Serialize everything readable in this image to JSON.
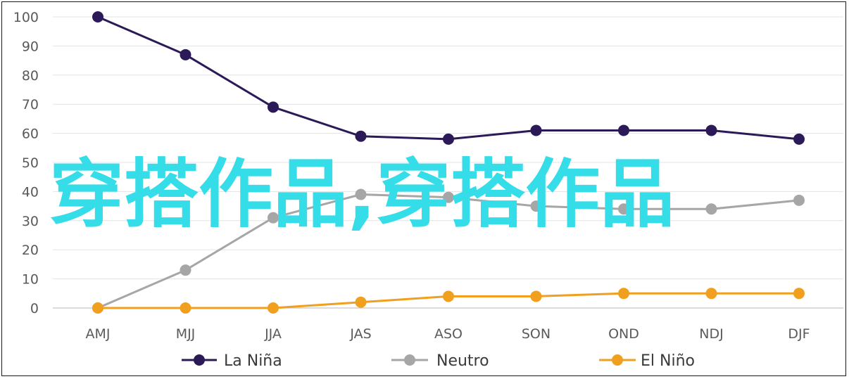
{
  "chart_data": {
    "type": "line",
    "categories": [
      "AMJ",
      "MJJ",
      "JJA",
      "JAS",
      "ASO",
      "SON",
      "OND",
      "NDJ",
      "DJF"
    ],
    "ylim": [
      0,
      100
    ],
    "yticks": [
      0,
      10,
      20,
      30,
      40,
      50,
      60,
      70,
      80,
      90,
      100
    ],
    "grid": true,
    "legend_position": "bottom",
    "series": [
      {
        "name": "La Niña",
        "color": "#2b1a57",
        "values": [
          100,
          87,
          69,
          59,
          58,
          61,
          61,
          61,
          58
        ]
      },
      {
        "name": "Neutro",
        "color": "#a6a6a6",
        "values": [
          0,
          13,
          31,
          39,
          38,
          35,
          34,
          34,
          37
        ]
      },
      {
        "name": "El Niño",
        "color": "#f0a01e",
        "values": [
          0,
          0,
          0,
          2,
          4,
          4,
          5,
          5,
          5
        ]
      }
    ]
  },
  "overlay": {
    "text": "穿搭作品,穿搭作品",
    "color": "#35dde8"
  }
}
